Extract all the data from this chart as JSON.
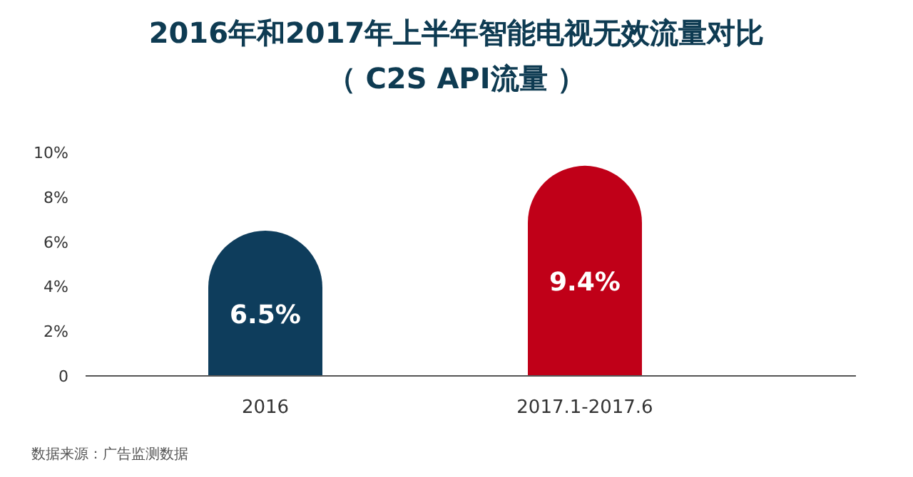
{
  "chart_data": {
    "type": "bar",
    "title": "2016年和2017年上半年智能电视无效流量对比",
    "subtitle": "（ C2S API流量 ）",
    "categories": [
      "2016",
      "2017.1-2017.6"
    ],
    "values": [
      6.5,
      9.4
    ],
    "colors": [
      "#0e3d5c",
      "#c00018"
    ],
    "value_labels": [
      "6.5%",
      "9.4%"
    ],
    "ylim": [
      0,
      10
    ],
    "yticks": [
      {
        "value": 0,
        "label": "0"
      },
      {
        "value": 2,
        "label": "2%"
      },
      {
        "value": 4,
        "label": "4%"
      },
      {
        "value": 6,
        "label": "6%"
      },
      {
        "value": 8,
        "label": "8%"
      },
      {
        "value": 10,
        "label": "10%"
      }
    ],
    "annotations": [
      "数据来源：广告监测数据"
    ]
  }
}
